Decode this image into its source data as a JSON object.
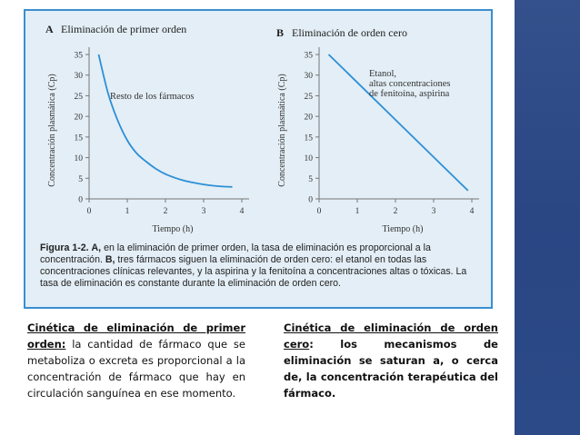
{
  "colors": {
    "border": "#3a8fd0",
    "panel_bg": "#e3eef6",
    "sidebar": "#2f4c8a"
  },
  "chart_data": [
    {
      "type": "line",
      "panel_letter": "A",
      "title": "Eliminación de primer orden",
      "xlabel": "Tiempo (h)",
      "ylabel": "Concentración plasmática (Cp)",
      "xlim": [
        0,
        4
      ],
      "ylim": [
        0,
        35
      ],
      "xticks": [
        "0",
        "1",
        "2",
        "3",
        "4"
      ],
      "yticks": [
        "0",
        "5",
        "10",
        "15",
        "20",
        "25",
        "30",
        "35"
      ],
      "annotation": [
        "Resto de los fármacos"
      ],
      "series": [
        {
          "x": [
            0.25,
            0.5,
            0.75,
            1.0,
            1.25,
            1.5,
            1.75,
            2.0,
            2.25,
            2.5,
            2.75,
            3.0,
            3.25,
            3.5,
            3.75
          ],
          "y": [
            35,
            25.5,
            19.0,
            14.2,
            11.0,
            9.0,
            7.3,
            6.0,
            5.1,
            4.4,
            3.9,
            3.5,
            3.2,
            3.0,
            2.9
          ]
        }
      ]
    },
    {
      "type": "line",
      "panel_letter": "B",
      "title": "Eliminación de orden cero",
      "xlabel": "Tiempo (h)",
      "ylabel": "Concentración plasmática (Cp)",
      "xlim": [
        0,
        4
      ],
      "ylim": [
        0,
        35
      ],
      "xticks": [
        "0",
        "1",
        "2",
        "3",
        "4"
      ],
      "yticks": [
        "0",
        "5",
        "10",
        "15",
        "20",
        "25",
        "30",
        "35"
      ],
      "annotation": [
        "Etanol,",
        "altas concentraciones",
        "de fenitoína, aspirina"
      ],
      "series": [
        {
          "x": [
            0.25,
            3.9
          ],
          "y": [
            35,
            2
          ]
        }
      ]
    }
  ],
  "caption": {
    "label": "Figura 1-2.",
    "a_letter": "A,",
    "part1": " en la eliminación de primer orden, la tasa de eliminación es proporcional a la concentración. ",
    "b_letter": "B,",
    "part2": " tres fármacos siguen la eliminación de orden cero: el etanol en todas las concentraciones clínicas relevantes, y la aspirina y la fenitoína a concentraciones altas o tóxicas. La tasa de eliminación es constante durante la eliminación de orden cero."
  },
  "left_text": {
    "heading": "Cinética de eliminación de primer orden:",
    "body": " la cantidad de fármaco que se metaboliza o excreta es proporcional a la concentración de fármaco que hay en circulación sanguínea en ese momento."
  },
  "right_text": {
    "heading": "Cinética de eliminación de orden cero",
    "body": ": los mecanismos de eliminación se saturan a, o cerca de, la concentración terapéutica del fármaco."
  }
}
